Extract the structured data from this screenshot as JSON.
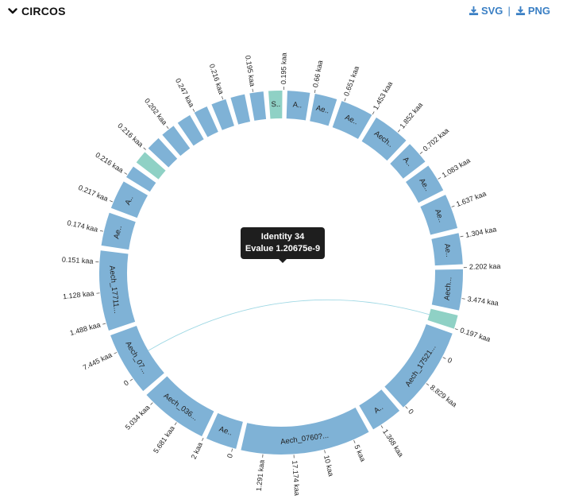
{
  "header": {
    "title": "CIRCOS",
    "svg_label": "SVG",
    "png_label": "PNG",
    "separator": "|"
  },
  "tooltip": {
    "line1": "Identity 34",
    "line2": "Evalue 1.20675e-9"
  },
  "colors": {
    "segment": "#7fb2d6",
    "segment_highlight": "#8fd1c5",
    "link": "#9fd8e4",
    "tooltip_bg": "#1e1e1e",
    "accent": "#3a7fc4"
  },
  "segments": [
    {
      "name": "S..",
      "size": 0.195,
      "highlight": true
    },
    {
      "name": "A..",
      "size": 0.66
    },
    {
      "name": "Ae..",
      "size": 0.651
    },
    {
      "name": "Ae..",
      "size": 1.453
    },
    {
      "name": "Aech..",
      "size": 1.852
    },
    {
      "name": "A..",
      "size": 0.702
    },
    {
      "name": "Ae..",
      "size": 1.083
    },
    {
      "name": "Ae..",
      "size": 1.637
    },
    {
      "name": "Ae..",
      "size": 1.304
    },
    {
      "name": "Aech...",
      "size": 2.202
    },
    {
      "name": "",
      "size": 0.197,
      "highlight": true
    },
    {
      "name": "Aech_17521...",
      "size": 8.829
    },
    {
      "name": "A..",
      "size": 1.368
    },
    {
      "name": "Aech_0760?...",
      "size": 17.174
    },
    {
      "name": "Ae..",
      "size": 1.291
    },
    {
      "name": "Aech_036...",
      "size": 5.681
    },
    {
      "name": "Aech_07...",
      "size": 5.034
    },
    {
      "name": "Aech_17711...",
      "size": 7.445
    },
    {
      "name": "Ae..",
      "size": 1.488
    },
    {
      "name": "A..",
      "size": 1.128
    },
    {
      "name": "",
      "size": 0.151
    },
    {
      "name": "",
      "size": 0.174,
      "highlight": true
    },
    {
      "name": "",
      "size": 0.217
    },
    {
      "name": "",
      "size": 0.216
    },
    {
      "name": "",
      "size": 0.216
    },
    {
      "name": "",
      "size": 0.202
    },
    {
      "name": "",
      "size": 0.247
    },
    {
      "name": "",
      "size": 0.216
    },
    {
      "name": "",
      "size": 0.195
    }
  ],
  "tick_labels": [
    "0.195 kaa",
    "0.66 kaa",
    "0.651 kaa",
    "1.453 kaa",
    "1.852 kaa",
    "0.702 kaa",
    "1.083 kaa",
    "1.637 kaa",
    "1.304 kaa",
    "2.202 kaa",
    "3.474 kaa",
    "0.197 kaa",
    "0",
    "8.829 kaa",
    "0",
    "1.368 kaa",
    "5 kaa",
    "10 kaa",
    "17.174 kaa",
    "1.291 kaa",
    "0",
    "2 kaa",
    "5.681 kaa",
    "5.034 kaa",
    "0",
    "7.445 kaa",
    "1.488 kaa",
    "1.128 kaa",
    "0.151 kaa",
    "0.174 kaa",
    "0.217 kaa",
    "0.216 kaa",
    "0.216 kaa",
    "0.202 kaa",
    "0.247 kaa",
    "0.216 kaa",
    "0.195 kaa"
  ]
}
